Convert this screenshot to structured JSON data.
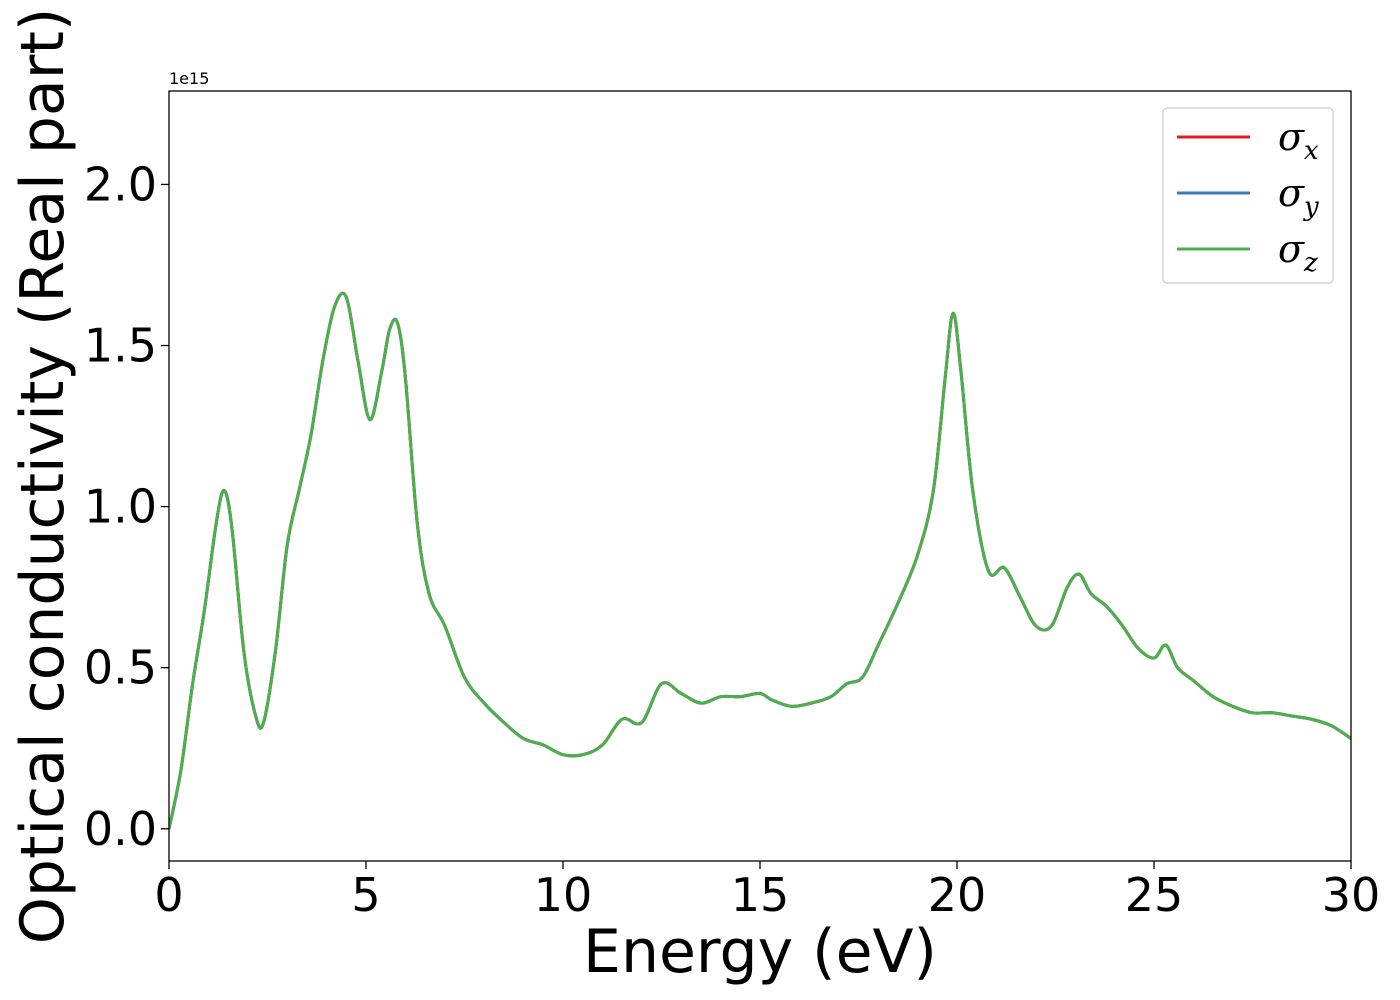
{
  "chart_data": {
    "type": "line",
    "xlabel": "Energy (eV)",
    "ylabel": "Optical conductivity (Real part)",
    "y_offset_label": "1e15",
    "y_scale": 1000000000000000.0,
    "xlim": [
      0,
      30
    ],
    "ylim": [
      -0.1,
      2.29
    ],
    "x_ticks": [
      0,
      5,
      10,
      15,
      20,
      25,
      30
    ],
    "x_tick_labels": [
      "0",
      "5",
      "10",
      "15",
      "20",
      "25",
      "30"
    ],
    "y_ticks": [
      0.0,
      0.5,
      1.0,
      1.5,
      2.0
    ],
    "y_tick_labels": [
      "0.0",
      "0.5",
      "1.0",
      "1.5",
      "2.0"
    ],
    "grid": false,
    "legend_position": "top-right",
    "series": [
      {
        "name": "σx",
        "symbol": "σ",
        "subscript": "x",
        "color": "#e41a1c"
      },
      {
        "name": "σy",
        "symbol": "σ",
        "subscript": "y",
        "color": "#377eb8"
      },
      {
        "name": "σz",
        "symbol": "σ",
        "subscript": "z",
        "color": "#4daf4a"
      }
    ],
    "x": [
      0,
      0.3,
      0.6,
      0.9,
      1.2,
      1.4,
      1.6,
      1.9,
      2.2,
      2.4,
      2.7,
      3.0,
      3.3,
      3.6,
      3.9,
      4.2,
      4.5,
      4.8,
      5.1,
      5.4,
      5.6,
      5.8,
      6.0,
      6.3,
      6.6,
      7.0,
      7.5,
      8.0,
      8.5,
      9.0,
      9.5,
      10.0,
      10.5,
      11.0,
      11.5,
      12.0,
      12.5,
      13.0,
      13.5,
      14.0,
      14.5,
      15.0,
      15.3,
      15.8,
      16.3,
      16.8,
      17.2,
      17.6,
      18.0,
      18.5,
      19.0,
      19.4,
      19.7,
      19.9,
      20.1,
      20.4,
      20.8,
      21.2,
      21.6,
      22.0,
      22.4,
      22.8,
      23.1,
      23.4,
      23.8,
      24.2,
      24.6,
      25.0,
      25.3,
      25.6,
      26.0,
      26.5,
      27.0,
      27.5,
      28.0,
      28.5,
      29.0,
      29.5,
      30.0
    ],
    "values": [
      0.0,
      0.18,
      0.45,
      0.68,
      0.95,
      1.05,
      0.93,
      0.55,
      0.35,
      0.33,
      0.55,
      0.88,
      1.05,
      1.22,
      1.45,
      1.62,
      1.65,
      1.45,
      1.27,
      1.42,
      1.55,
      1.57,
      1.4,
      0.95,
      0.73,
      0.63,
      0.47,
      0.39,
      0.33,
      0.28,
      0.26,
      0.23,
      0.23,
      0.26,
      0.34,
      0.33,
      0.45,
      0.42,
      0.39,
      0.41,
      0.41,
      0.42,
      0.4,
      0.38,
      0.39,
      0.41,
      0.45,
      0.47,
      0.57,
      0.7,
      0.85,
      1.05,
      1.4,
      1.6,
      1.42,
      1.05,
      0.8,
      0.81,
      0.72,
      0.63,
      0.63,
      0.75,
      0.79,
      0.73,
      0.69,
      0.63,
      0.56,
      0.53,
      0.57,
      0.5,
      0.46,
      0.41,
      0.38,
      0.36,
      0.36,
      0.35,
      0.34,
      0.32,
      0.28
    ]
  }
}
